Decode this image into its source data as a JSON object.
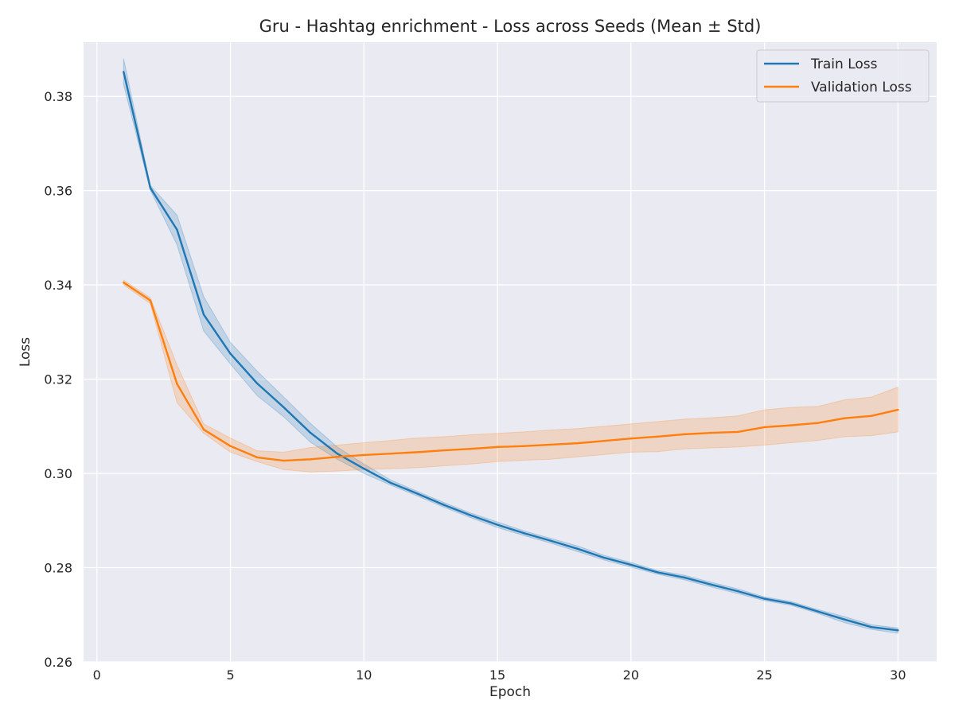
{
  "chart_data": {
    "type": "line",
    "title": "Gru - Hashtag enrichment - Loss across Seeds (Mean ± Std)",
    "xlabel": "Epoch",
    "ylabel": "Loss",
    "xlim": [
      -0.5,
      31.45
    ],
    "ylim": [
      0.26,
      0.3915
    ],
    "xticks": [
      0,
      5,
      10,
      15,
      20,
      25,
      30
    ],
    "xtick_labels": [
      "0",
      "5",
      "10",
      "15",
      "20",
      "25",
      "30"
    ],
    "yticks": [
      0.26,
      0.28,
      0.3,
      0.32,
      0.34,
      0.36,
      0.38
    ],
    "ytick_labels": [
      "0.26",
      "0.28",
      "0.30",
      "0.32",
      "0.34",
      "0.36",
      "0.38"
    ],
    "grid": true,
    "background": "#eaeaf2",
    "legend_position": "top-right",
    "x": [
      1,
      2,
      3,
      4,
      5,
      6,
      7,
      8,
      9,
      10,
      11,
      12,
      13,
      14,
      15,
      16,
      17,
      18,
      19,
      20,
      21,
      22,
      23,
      24,
      25,
      26,
      27,
      28,
      29,
      30
    ],
    "series": [
      {
        "name": "Train Loss",
        "color": "#1f77b4",
        "values": [
          0.3852,
          0.3606,
          0.3517,
          0.3337,
          0.3254,
          0.3191,
          0.314,
          0.3086,
          0.3042,
          0.301,
          0.298,
          0.2957,
          0.2933,
          0.2911,
          0.2891,
          0.2873,
          0.2857,
          0.284,
          0.2821,
          0.2806,
          0.279,
          0.2779,
          0.2764,
          0.275,
          0.2734,
          0.2724,
          0.2707,
          0.269,
          0.2674,
          0.2667
        ],
        "lower": [
          0.3825,
          0.3601,
          0.3485,
          0.3302,
          0.3232,
          0.3165,
          0.312,
          0.3066,
          0.303,
          0.3,
          0.2975,
          0.2952,
          0.2928,
          0.2906,
          0.2885,
          0.2868,
          0.2852,
          0.2834,
          0.2816,
          0.2801,
          0.2786,
          0.2774,
          0.2759,
          0.2745,
          0.273,
          0.272,
          0.2703,
          0.2683,
          0.2669,
          0.2661
        ],
        "upper": [
          0.388,
          0.3611,
          0.3548,
          0.3375,
          0.3278,
          0.3217,
          0.3162,
          0.3106,
          0.3056,
          0.302,
          0.2986,
          0.2962,
          0.2938,
          0.2916,
          0.2897,
          0.2878,
          0.2862,
          0.2846,
          0.2826,
          0.2811,
          0.2794,
          0.2784,
          0.2769,
          0.2755,
          0.2738,
          0.2728,
          0.2711,
          0.2696,
          0.2679,
          0.2672
        ]
      },
      {
        "name": "Validation Loss",
        "color": "#ff7f0e",
        "values": [
          0.3405,
          0.3367,
          0.319,
          0.3093,
          0.3058,
          0.3034,
          0.3027,
          0.303,
          0.3035,
          0.3039,
          0.3042,
          0.3045,
          0.3049,
          0.3052,
          0.3056,
          0.3058,
          0.3061,
          0.3064,
          0.3069,
          0.3074,
          0.3078,
          0.3083,
          0.3086,
          0.3088,
          0.3098,
          0.3102,
          0.3107,
          0.3117,
          0.3122,
          0.3135
        ],
        "lower": [
          0.34,
          0.336,
          0.315,
          0.3085,
          0.3045,
          0.3025,
          0.3008,
          0.3003,
          0.3005,
          0.3008,
          0.301,
          0.3012,
          0.3016,
          0.302,
          0.3025,
          0.3028,
          0.303,
          0.3035,
          0.304,
          0.3045,
          0.3046,
          0.3052,
          0.3054,
          0.3056,
          0.306,
          0.3065,
          0.307,
          0.3078,
          0.308,
          0.3088
        ],
        "upper": [
          0.341,
          0.3373,
          0.323,
          0.3105,
          0.3075,
          0.3048,
          0.3045,
          0.3055,
          0.306,
          0.3065,
          0.307,
          0.3075,
          0.3078,
          0.3082,
          0.3085,
          0.3088,
          0.3092,
          0.3095,
          0.31,
          0.3105,
          0.311,
          0.3115,
          0.3118,
          0.3122,
          0.3135,
          0.314,
          0.3142,
          0.3156,
          0.3162,
          0.3183
        ]
      }
    ]
  }
}
